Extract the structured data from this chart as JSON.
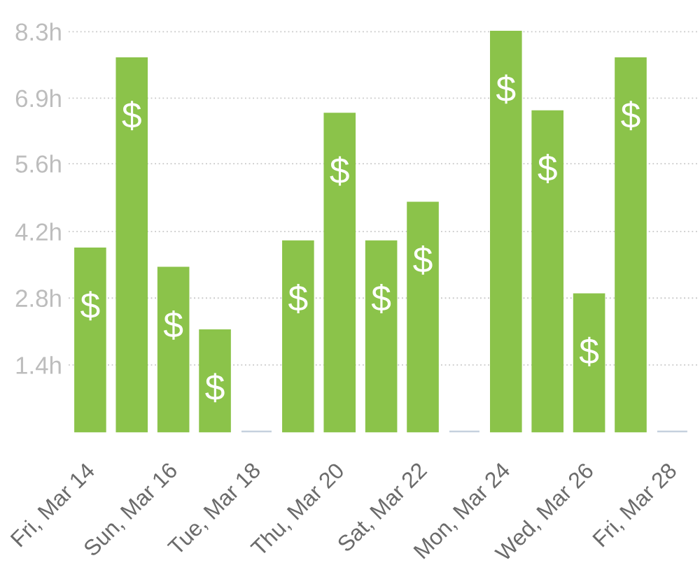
{
  "chart_data": {
    "type": "bar",
    "categories": [
      "Fri, Mar 14",
      null,
      "Sun, Mar 16",
      null,
      "Tue, Mar 18",
      null,
      "Thu, Mar 20",
      null,
      "Sat, Mar 22",
      null,
      "Mon, Mar 24",
      null,
      "Wed, Mar 26",
      null,
      "Fri, Mar 28"
    ],
    "values": [
      3.8,
      7.75,
      3.4,
      2.1,
      0,
      3.95,
      6.6,
      3.95,
      4.75,
      0,
      8.3,
      6.65,
      2.85,
      7.75,
      0
    ],
    "colors": [
      "#8bc34a",
      "#8bc34a",
      "#8bc34a",
      "#8bc34a",
      "#c5d1de",
      "#8bc34a",
      "#8bc34a",
      "#8bc34a",
      "#8bc34a",
      "#c5d1de",
      "#8bc34a",
      "#8bc34a",
      "#8bc34a",
      "#8bc34a",
      "#c5d1de"
    ],
    "value_labels": [
      "$",
      "$",
      "$",
      "$",
      null,
      "$",
      "$",
      "$",
      "$",
      null,
      "$",
      "$",
      "$",
      "$",
      null
    ],
    "ylim": [
      0,
      8.3
    ],
    "yticks": [
      {
        "value": 1.38,
        "label": "1.4h"
      },
      {
        "value": 2.77,
        "label": "2.8h"
      },
      {
        "value": 4.15,
        "label": "4.2h"
      },
      {
        "value": 5.56,
        "label": "5.6h"
      },
      {
        "value": 6.92,
        "label": "6.9h"
      },
      {
        "value": 8.3,
        "label": "8.3h"
      }
    ],
    "grid": "y"
  }
}
